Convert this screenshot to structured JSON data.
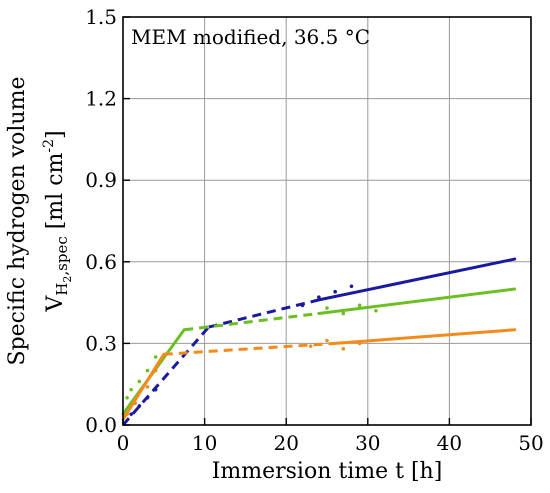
{
  "chart_data": {
    "type": "line",
    "title": "",
    "annotation": "MEM modified, 36.5 °C",
    "xlabel": "Immersion time t [h]",
    "ylabel_line1": "Specific hydrogen volume",
    "ylabel_line2": {
      "main": "V",
      "sub": "H",
      "sub2": "2",
      "sub3": ",spec",
      "unit": " [ml cm",
      "sup": "-2",
      "close": "]"
    },
    "xlim": [
      0,
      50
    ],
    "ylim": [
      0,
      1.5
    ],
    "xticks": [
      0,
      10,
      20,
      30,
      40,
      50
    ],
    "xtick_labels": [
      "0",
      "10",
      "20",
      "30",
      "40",
      "50"
    ],
    "yticks": [
      0,
      0.3,
      0.6,
      0.9,
      1.2,
      1.5
    ],
    "ytick_labels": [
      "0.0",
      "0.3",
      "0.6",
      "0.9",
      "1.2",
      "1.5"
    ],
    "grid": true,
    "series": [
      {
        "color": "#1a1aa0",
        "fits": [
          {
            "style": "dashed",
            "x": [
              0,
              10.5
            ],
            "y": [
              0,
              0.36
            ]
          },
          {
            "style": "dashed",
            "x": [
              10.5,
              24
            ],
            "y": [
              0.36,
              0.46
            ]
          },
          {
            "style": "solid",
            "x": [
              24,
              48
            ],
            "y": [
              0.46,
              0.61
            ]
          }
        ],
        "points": {
          "x": [
            1,
            2,
            3,
            4,
            22,
            24,
            26,
            28
          ],
          "y": [
            0.04,
            0.07,
            0.1,
            0.13,
            0.44,
            0.47,
            0.49,
            0.51
          ]
        }
      },
      {
        "color": "#6cbf22",
        "fits": [
          {
            "style": "solid",
            "x": [
              0,
              7.5
            ],
            "y": [
              0.04,
              0.35
            ]
          },
          {
            "style": "dashed",
            "x": [
              7.5,
              24
            ],
            "y": [
              0.35,
              0.41
            ]
          },
          {
            "style": "solid",
            "x": [
              24,
              48
            ],
            "y": [
              0.41,
              0.5
            ]
          }
        ],
        "points": {
          "x": [
            0.5,
            1,
            2,
            3,
            4,
            25,
            27,
            29,
            31
          ],
          "y": [
            0.1,
            0.13,
            0.16,
            0.2,
            0.25,
            0.43,
            0.41,
            0.44,
            0.42
          ]
        }
      },
      {
        "color": "#f28a1c",
        "fits": [
          {
            "style": "solid",
            "x": [
              0,
              5
            ],
            "y": [
              0.02,
              0.26
            ]
          },
          {
            "style": "dashed",
            "x": [
              5,
              26
            ],
            "y": [
              0.26,
              0.3
            ]
          },
          {
            "style": "solid",
            "x": [
              26,
              48
            ],
            "y": [
              0.3,
              0.35
            ]
          }
        ],
        "points": {
          "x": [
            0.5,
            1.5,
            3,
            4,
            23,
            25,
            27,
            29
          ],
          "y": [
            0.04,
            0.08,
            0.14,
            0.2,
            0.29,
            0.31,
            0.28,
            0.3
          ]
        }
      }
    ]
  }
}
